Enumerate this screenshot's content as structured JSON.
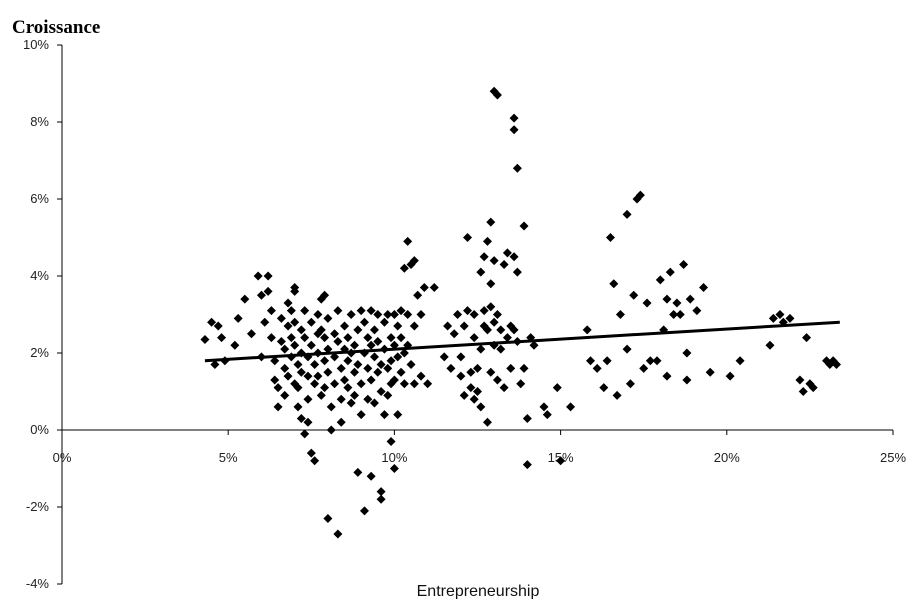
{
  "chart_data": {
    "type": "scatter",
    "title": "Croissance",
    "xlabel": "Entrepreneurship",
    "ylabel": "",
    "xlim": [
      0,
      0.25
    ],
    "ylim": [
      -0.04,
      0.1
    ],
    "x_ticks": [
      0,
      0.05,
      0.1,
      0.15,
      0.2,
      0.25
    ],
    "x_tick_labels": [
      "0%",
      "5%",
      "10%",
      "15%",
      "20%",
      "25%"
    ],
    "y_ticks": [
      -0.04,
      -0.02,
      0,
      0.02,
      0.04,
      0.06,
      0.08,
      0.1
    ],
    "y_tick_labels": [
      "-4%",
      "-2%",
      "0%",
      "2%",
      "4%",
      "6%",
      "8%",
      "10%"
    ],
    "grid": false,
    "marker": "diamond",
    "color": "#000000",
    "trendline": {
      "x": [
        0.043,
        0.234
      ],
      "y": [
        0.018,
        0.028
      ]
    },
    "points": [
      [
        0.043,
        0.0235
      ],
      [
        0.045,
        0.028
      ],
      [
        0.046,
        0.017
      ],
      [
        0.047,
        0.027
      ],
      [
        0.048,
        0.024
      ],
      [
        0.049,
        0.018
      ],
      [
        0.052,
        0.022
      ],
      [
        0.053,
        0.029
      ],
      [
        0.055,
        0.034
      ],
      [
        0.057,
        0.025
      ],
      [
        0.059,
        0.04
      ],
      [
        0.06,
        0.035
      ],
      [
        0.06,
        0.019
      ],
      [
        0.061,
        0.028
      ],
      [
        0.062,
        0.04
      ],
      [
        0.062,
        0.036
      ],
      [
        0.063,
        0.031
      ],
      [
        0.063,
        0.024
      ],
      [
        0.064,
        0.018
      ],
      [
        0.064,
        0.013
      ],
      [
        0.065,
        0.011
      ],
      [
        0.065,
        0.006
      ],
      [
        0.066,
        0.029
      ],
      [
        0.066,
        0.023
      ],
      [
        0.067,
        0.021
      ],
      [
        0.067,
        0.016
      ],
      [
        0.067,
        0.009
      ],
      [
        0.068,
        0.033
      ],
      [
        0.068,
        0.027
      ],
      [
        0.068,
        0.014
      ],
      [
        0.069,
        0.031
      ],
      [
        0.069,
        0.024
      ],
      [
        0.069,
        0.019
      ],
      [
        0.07,
        0.037
      ],
      [
        0.07,
        0.036
      ],
      [
        0.07,
        0.028
      ],
      [
        0.07,
        0.022
      ],
      [
        0.07,
        0.012
      ],
      [
        0.071,
        0.017
      ],
      [
        0.071,
        0.011
      ],
      [
        0.071,
        0.006
      ],
      [
        0.072,
        0.026
      ],
      [
        0.072,
        0.02
      ],
      [
        0.072,
        0.015
      ],
      [
        0.072,
        0.003
      ],
      [
        0.073,
        -0.001
      ],
      [
        0.073,
        0.031
      ],
      [
        0.073,
        0.024
      ],
      [
        0.074,
        0.019
      ],
      [
        0.074,
        0.014
      ],
      [
        0.074,
        0.008
      ],
      [
        0.074,
        0.002
      ],
      [
        0.075,
        -0.006
      ],
      [
        0.075,
        0.028
      ],
      [
        0.075,
        0.022
      ],
      [
        0.076,
        0.017
      ],
      [
        0.076,
        0.012
      ],
      [
        0.076,
        -0.008
      ],
      [
        0.077,
        0.03
      ],
      [
        0.077,
        0.025
      ],
      [
        0.077,
        0.02
      ],
      [
        0.077,
        0.014
      ],
      [
        0.078,
        0.034
      ],
      [
        0.078,
        0.026
      ],
      [
        0.078,
        0.009
      ],
      [
        0.079,
        0.035
      ],
      [
        0.079,
        0.024
      ],
      [
        0.079,
        0.018
      ],
      [
        0.079,
        0.011
      ],
      [
        0.08,
        -0.023
      ],
      [
        0.08,
        0.029
      ],
      [
        0.08,
        0.021
      ],
      [
        0.08,
        0.015
      ],
      [
        0.081,
        0.006
      ],
      [
        0.081,
        0.0
      ],
      [
        0.082,
        0.025
      ],
      [
        0.082,
        0.019
      ],
      [
        0.082,
        0.012
      ],
      [
        0.083,
        0.031
      ],
      [
        0.083,
        0.023
      ],
      [
        0.083,
        -0.027
      ],
      [
        0.084,
        0.016
      ],
      [
        0.084,
        0.008
      ],
      [
        0.084,
        0.002
      ],
      [
        0.085,
        0.027
      ],
      [
        0.085,
        0.021
      ],
      [
        0.085,
        0.013
      ],
      [
        0.086,
        0.024
      ],
      [
        0.086,
        0.018
      ],
      [
        0.086,
        0.011
      ],
      [
        0.087,
        0.03
      ],
      [
        0.087,
        0.02
      ],
      [
        0.087,
        0.007
      ],
      [
        0.088,
        0.022
      ],
      [
        0.088,
        0.015
      ],
      [
        0.088,
        0.009
      ],
      [
        0.089,
        0.026
      ],
      [
        0.089,
        0.017
      ],
      [
        0.089,
        -0.011
      ],
      [
        0.09,
        0.031
      ],
      [
        0.09,
        0.012
      ],
      [
        0.09,
        0.004
      ],
      [
        0.091,
        0.028
      ],
      [
        0.091,
        0.02
      ],
      [
        0.091,
        -0.021
      ],
      [
        0.092,
        0.024
      ],
      [
        0.092,
        0.016
      ],
      [
        0.092,
        0.008
      ],
      [
        0.093,
        0.031
      ],
      [
        0.093,
        0.022
      ],
      [
        0.093,
        0.013
      ],
      [
        0.093,
        -0.012
      ],
      [
        0.094,
        0.026
      ],
      [
        0.094,
        0.019
      ],
      [
        0.094,
        0.007
      ],
      [
        0.095,
        0.03
      ],
      [
        0.095,
        0.023
      ],
      [
        0.095,
        0.015
      ],
      [
        0.096,
        0.017
      ],
      [
        0.096,
        0.01
      ],
      [
        0.096,
        -0.016
      ],
      [
        0.096,
        -0.018
      ],
      [
        0.097,
        0.028
      ],
      [
        0.097,
        0.021
      ],
      [
        0.097,
        0.004
      ],
      [
        0.098,
        0.03
      ],
      [
        0.098,
        0.016
      ],
      [
        0.098,
        0.009
      ],
      [
        0.099,
        0.024
      ],
      [
        0.099,
        0.018
      ],
      [
        0.099,
        0.012
      ],
      [
        0.099,
        -0.003
      ],
      [
        0.1,
        0.03
      ],
      [
        0.1,
        0.022
      ],
      [
        0.1,
        0.013
      ],
      [
        0.1,
        -0.01
      ],
      [
        0.101,
        0.027
      ],
      [
        0.101,
        0.019
      ],
      [
        0.101,
        0.004
      ],
      [
        0.102,
        0.031
      ],
      [
        0.102,
        0.024
      ],
      [
        0.102,
        0.015
      ],
      [
        0.103,
        0.042
      ],
      [
        0.103,
        0.02
      ],
      [
        0.103,
        0.012
      ],
      [
        0.104,
        0.049
      ],
      [
        0.104,
        0.03
      ],
      [
        0.104,
        0.022
      ],
      [
        0.105,
        0.043
      ],
      [
        0.105,
        0.017
      ],
      [
        0.106,
        0.044
      ],
      [
        0.106,
        0.027
      ],
      [
        0.106,
        0.012
      ],
      [
        0.107,
        0.035
      ],
      [
        0.108,
        0.03
      ],
      [
        0.108,
        0.014
      ],
      [
        0.109,
        0.037
      ],
      [
        0.11,
        0.012
      ],
      [
        0.112,
        0.037
      ],
      [
        0.115,
        0.019
      ],
      [
        0.116,
        0.027
      ],
      [
        0.117,
        0.016
      ],
      [
        0.118,
        0.025
      ],
      [
        0.119,
        0.03
      ],
      [
        0.12,
        0.019
      ],
      [
        0.12,
        0.014
      ],
      [
        0.121,
        0.009
      ],
      [
        0.121,
        0.027
      ],
      [
        0.122,
        0.05
      ],
      [
        0.122,
        0.031
      ],
      [
        0.123,
        0.015
      ],
      [
        0.123,
        0.011
      ],
      [
        0.124,
        0.03
      ],
      [
        0.124,
        0.024
      ],
      [
        0.124,
        0.008
      ],
      [
        0.125,
        0.016
      ],
      [
        0.125,
        0.01
      ],
      [
        0.126,
        0.041
      ],
      [
        0.126,
        0.021
      ],
      [
        0.126,
        0.006
      ],
      [
        0.127,
        0.045
      ],
      [
        0.127,
        0.031
      ],
      [
        0.127,
        0.027
      ],
      [
        0.128,
        0.049
      ],
      [
        0.128,
        0.026
      ],
      [
        0.128,
        0.002
      ],
      [
        0.129,
        0.054
      ],
      [
        0.129,
        0.038
      ],
      [
        0.129,
        0.032
      ],
      [
        0.129,
        0.015
      ],
      [
        0.13,
        0.088
      ],
      [
        0.13,
        0.044
      ],
      [
        0.13,
        0.028
      ],
      [
        0.13,
        0.022
      ],
      [
        0.131,
        0.087
      ],
      [
        0.131,
        0.03
      ],
      [
        0.131,
        0.013
      ],
      [
        0.132,
        0.026
      ],
      [
        0.132,
        0.021
      ],
      [
        0.133,
        0.043
      ],
      [
        0.133,
        0.011
      ],
      [
        0.134,
        0.046
      ],
      [
        0.134,
        0.024
      ],
      [
        0.135,
        0.027
      ],
      [
        0.135,
        0.016
      ],
      [
        0.136,
        0.081
      ],
      [
        0.136,
        0.078
      ],
      [
        0.136,
        0.045
      ],
      [
        0.136,
        0.026
      ],
      [
        0.137,
        0.068
      ],
      [
        0.137,
        0.041
      ],
      [
        0.137,
        0.023
      ],
      [
        0.138,
        0.012
      ],
      [
        0.139,
        0.053
      ],
      [
        0.139,
        0.016
      ],
      [
        0.14,
        0.003
      ],
      [
        0.14,
        -0.009
      ],
      [
        0.141,
        0.024
      ],
      [
        0.142,
        0.022
      ],
      [
        0.145,
        0.006
      ],
      [
        0.146,
        0.004
      ],
      [
        0.149,
        0.011
      ],
      [
        0.15,
        -0.008
      ],
      [
        0.153,
        0.006
      ],
      [
        0.158,
        0.026
      ],
      [
        0.159,
        0.018
      ],
      [
        0.161,
        0.016
      ],
      [
        0.163,
        0.011
      ],
      [
        0.164,
        0.018
      ],
      [
        0.165,
        0.05
      ],
      [
        0.166,
        0.038
      ],
      [
        0.167,
        0.009
      ],
      [
        0.168,
        0.03
      ],
      [
        0.17,
        0.056
      ],
      [
        0.17,
        0.021
      ],
      [
        0.171,
        0.012
      ],
      [
        0.172,
        0.035
      ],
      [
        0.173,
        0.06
      ],
      [
        0.174,
        0.061
      ],
      [
        0.175,
        0.016
      ],
      [
        0.176,
        0.033
      ],
      [
        0.177,
        0.018
      ],
      [
        0.179,
        0.018
      ],
      [
        0.18,
        0.039
      ],
      [
        0.181,
        0.026
      ],
      [
        0.182,
        0.034
      ],
      [
        0.182,
        0.014
      ],
      [
        0.183,
        0.041
      ],
      [
        0.184,
        0.03
      ],
      [
        0.185,
        0.033
      ],
      [
        0.186,
        0.03
      ],
      [
        0.187,
        0.043
      ],
      [
        0.188,
        0.02
      ],
      [
        0.188,
        0.013
      ],
      [
        0.189,
        0.034
      ],
      [
        0.191,
        0.031
      ],
      [
        0.193,
        0.037
      ],
      [
        0.195,
        0.015
      ],
      [
        0.201,
        0.014
      ],
      [
        0.204,
        0.018
      ],
      [
        0.213,
        0.022
      ],
      [
        0.214,
        0.029
      ],
      [
        0.216,
        0.03
      ],
      [
        0.217,
        0.028
      ],
      [
        0.219,
        0.029
      ],
      [
        0.222,
        0.013
      ],
      [
        0.223,
        0.01
      ],
      [
        0.224,
        0.024
      ],
      [
        0.225,
        0.012
      ],
      [
        0.226,
        0.011
      ],
      [
        0.23,
        0.018
      ],
      [
        0.231,
        0.017
      ],
      [
        0.232,
        0.018
      ],
      [
        0.233,
        0.017
      ]
    ]
  }
}
